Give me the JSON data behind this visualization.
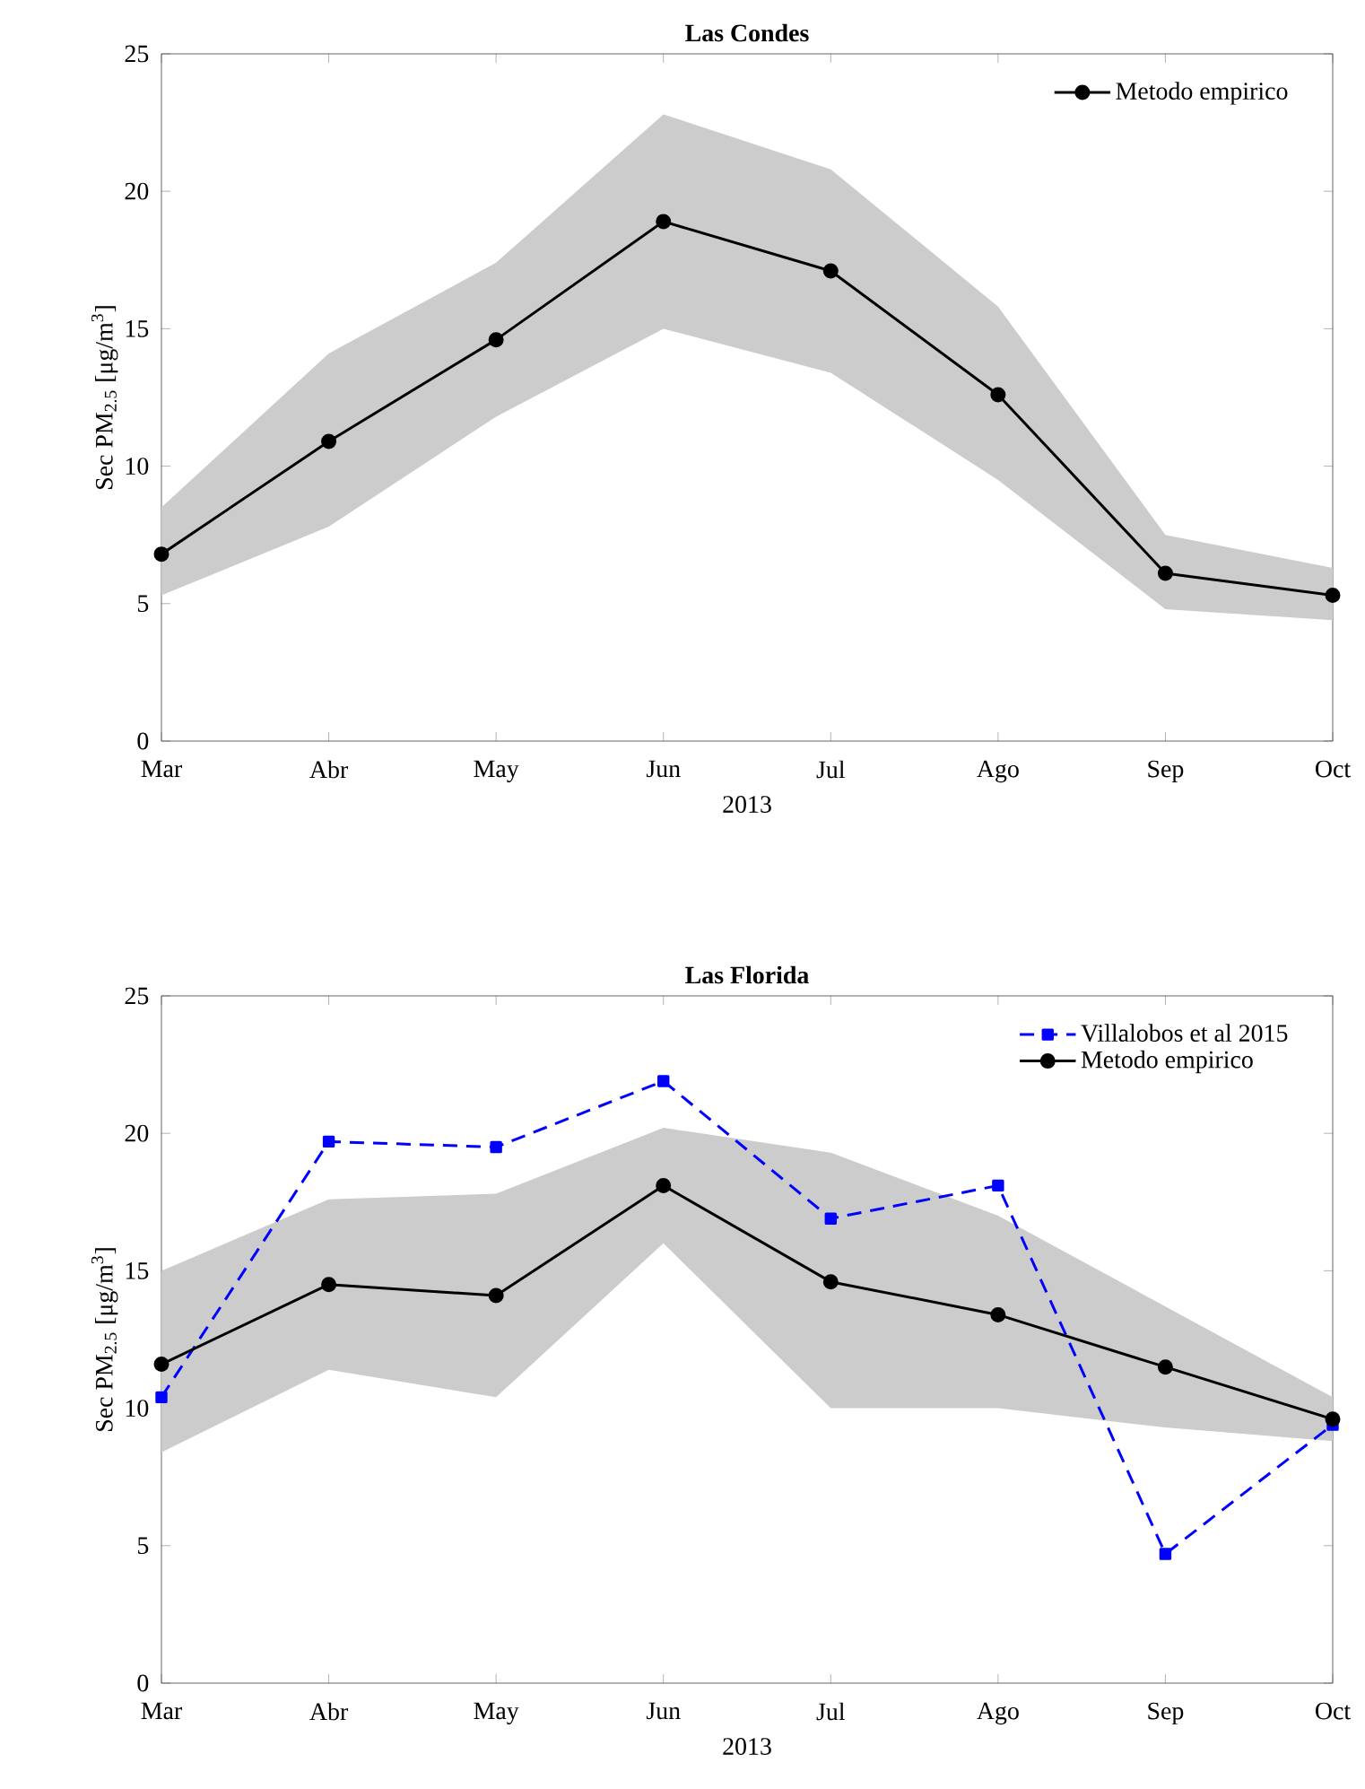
{
  "chart_data": [
    {
      "type": "line",
      "title": "Las Condes",
      "xlabel": "2013",
      "ylabel": "Sec PM$_{2.5}$ [μg/m$^{3}$]",
      "categories": [
        "Mar",
        "Abr",
        "May",
        "Jun",
        "Jul",
        "Ago",
        "Sep",
        "Oct"
      ],
      "series": [
        {
          "name": "Metodo empirico",
          "color": "#000000",
          "marker": "circle",
          "line_style": "solid",
          "values": [
            6.8,
            10.9,
            14.6,
            18.9,
            17.1,
            12.6,
            6.1,
            5.3
          ],
          "lower": [
            5.3,
            7.8,
            11.8,
            15.0,
            13.4,
            9.5,
            4.8,
            4.4
          ],
          "upper": [
            8.5,
            14.1,
            17.4,
            22.8,
            20.8,
            15.8,
            7.5,
            6.3
          ]
        }
      ],
      "ylim": [
        0,
        25
      ],
      "yticks": [
        0,
        5,
        10,
        15,
        20,
        25
      ],
      "grid": false,
      "legend": "top right"
    },
    {
      "type": "line",
      "title": "Las Florida",
      "xlabel": "2013",
      "ylabel": "Sec PM$_{2.5}$ [μg/m$^{3}$]",
      "categories": [
        "Mar",
        "Abr",
        "May",
        "Jun",
        "Jul",
        "Ago",
        "Sep",
        "Oct"
      ],
      "series": [
        {
          "name": "Villalobos et al 2015",
          "color": "#0000ff",
          "marker": "square",
          "line_style": "dashed",
          "values": [
            10.4,
            19.7,
            19.5,
            21.9,
            16.9,
            18.1,
            4.7,
            9.4
          ]
        },
        {
          "name": "Metodo empirico",
          "color": "#000000",
          "marker": "circle",
          "line_style": "solid",
          "values": [
            11.6,
            14.5,
            14.1,
            18.1,
            14.6,
            13.4,
            11.5,
            9.6
          ],
          "lower": [
            8.4,
            11.4,
            10.4,
            16.0,
            10.0,
            10.0,
            9.3,
            8.8
          ],
          "upper": [
            15.0,
            17.6,
            17.8,
            20.2,
            19.3,
            17.0,
            13.7,
            10.4
          ]
        }
      ],
      "ylim": [
        0,
        25
      ],
      "yticks": [
        0,
        5,
        10,
        15,
        20,
        25
      ],
      "grid": false,
      "legend": "top right"
    }
  ]
}
